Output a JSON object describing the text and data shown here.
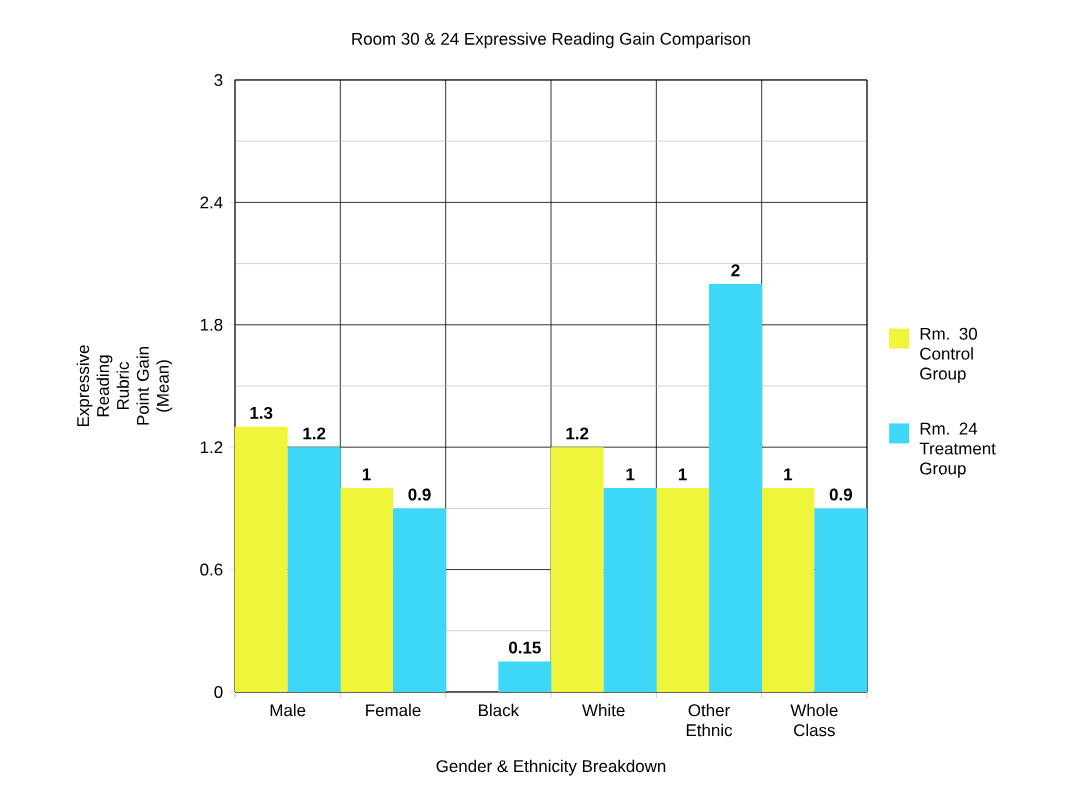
{
  "chart_data": {
    "type": "bar",
    "title": "Room 30 & 24 Expressive Reading Gain Comparison",
    "xlabel": "Gender & Ethnicity Breakdown",
    "ylabel": "Expressive Reading Rubric Point Gain (Mean)",
    "categories": [
      "Male",
      "Female",
      "Black",
      "White",
      "Other Ethnic",
      "Whole Class"
    ],
    "series": [
      {
        "name": "Rm. 30 Control Group",
        "color": "#eef53a",
        "values": [
          1.3,
          1,
          null,
          1.2,
          1,
          1
        ],
        "value_labels": [
          "1.3",
          "1",
          null,
          "1.2",
          "1",
          "1"
        ]
      },
      {
        "name": "Rm. 24 Treatment Group",
        "color": "#3dd8f8",
        "values": [
          1.2,
          0.9,
          0.15,
          1,
          2,
          0.9
        ],
        "value_labels": [
          "1.2",
          "0.9",
          "0.15",
          "1",
          "2",
          "0.9"
        ]
      }
    ],
    "ylim": [
      0,
      3
    ],
    "yticks": [
      0,
      0.6,
      1.2,
      1.8,
      2.4,
      3
    ],
    "grid": true,
    "legend": "right"
  }
}
